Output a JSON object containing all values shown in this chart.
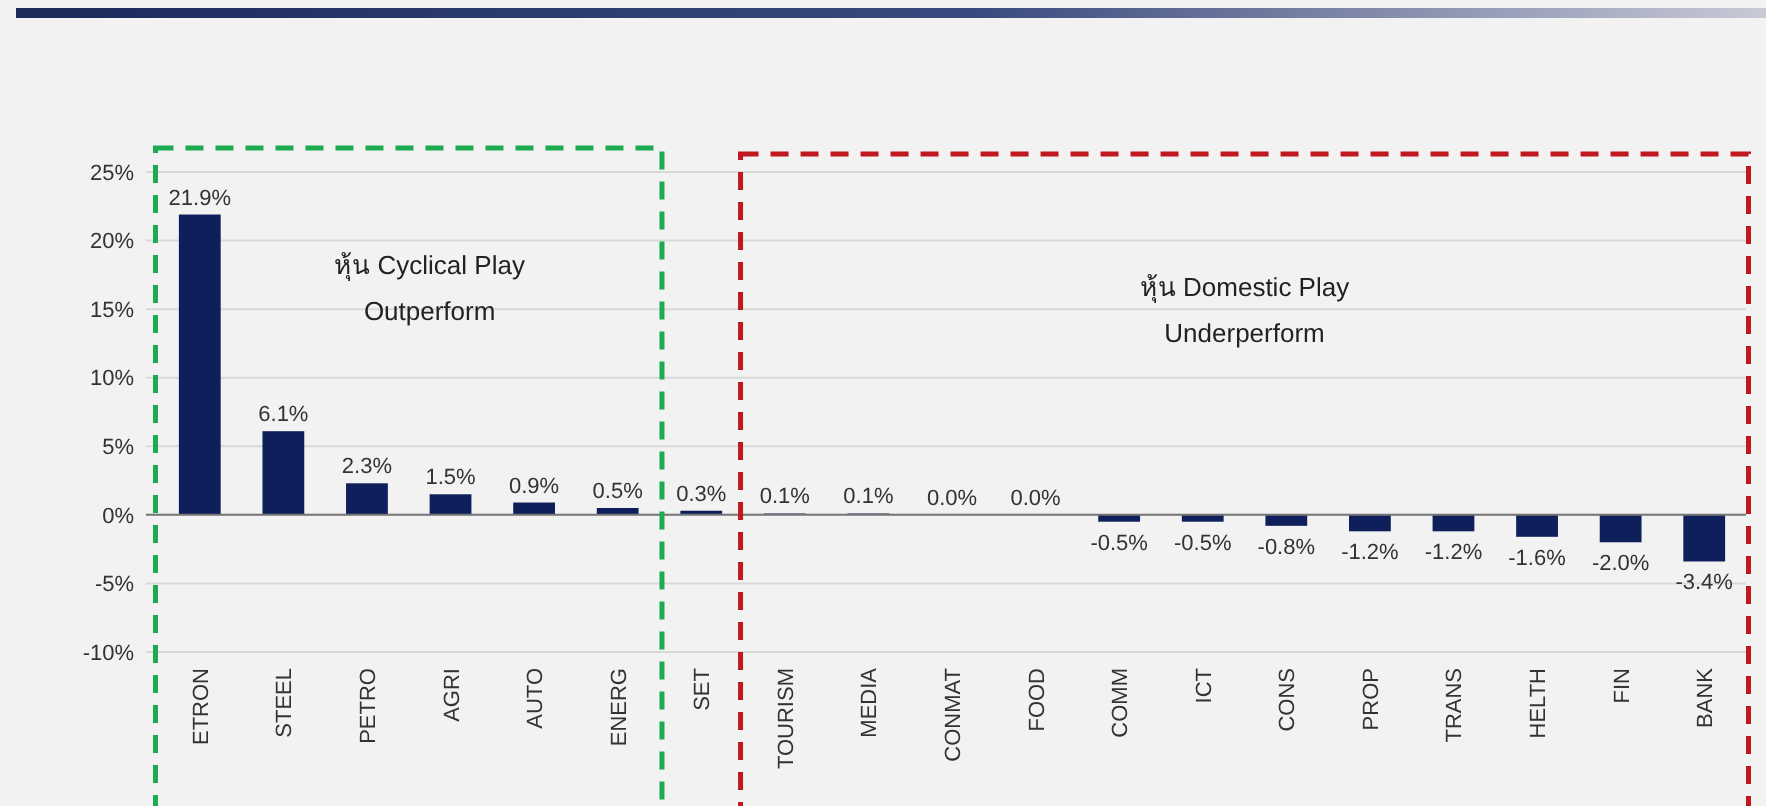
{
  "chart_data": {
    "type": "bar",
    "categories": [
      "ETRON",
      "STEEL",
      "PETRO",
      "AGRI",
      "AUTO",
      "ENERG",
      "SET",
      "TOURISM",
      "MEDIA",
      "CONMAT",
      "FOOD",
      "COMM",
      "ICT",
      "CONS",
      "PROP",
      "TRANS",
      "HELTH",
      "FIN",
      "BANK"
    ],
    "values": [
      21.9,
      6.1,
      2.3,
      1.5,
      0.9,
      0.5,
      0.3,
      0.1,
      0.1,
      0.0,
      0.0,
      -0.5,
      -0.5,
      -0.8,
      -1.2,
      -1.2,
      -1.6,
      -2.0,
      -3.4
    ],
    "value_labels": [
      "21.9%",
      "6.1%",
      "2.3%",
      "1.5%",
      "0.9%",
      "0.5%",
      "0.3%",
      "0.1%",
      "0.1%",
      "0.0%",
      "0.0%",
      "-0.5%",
      "-0.5%",
      "-0.8%",
      "-1.2%",
      "-1.2%",
      "-1.6%",
      "-2.0%",
      "-3.4%"
    ],
    "color": "#0f1f5c",
    "ylim": [
      -10,
      25
    ],
    "yticks": [
      {
        "value": -10,
        "label": "-10%"
      },
      {
        "value": -5,
        "label": "-5%"
      },
      {
        "value": 0,
        "label": "0%"
      },
      {
        "value": 5,
        "label": "5%"
      },
      {
        "value": 10,
        "label": "10%"
      },
      {
        "value": 15,
        "label": "15%"
      },
      {
        "value": 20,
        "label": "20%"
      },
      {
        "value": 25,
        "label": "25%"
      }
    ],
    "grid": "y",
    "annotations": [
      "หุ้น Cyclical Play\nOutperform",
      "หุ้น Domestic Play\nUnderperform"
    ]
  }
}
